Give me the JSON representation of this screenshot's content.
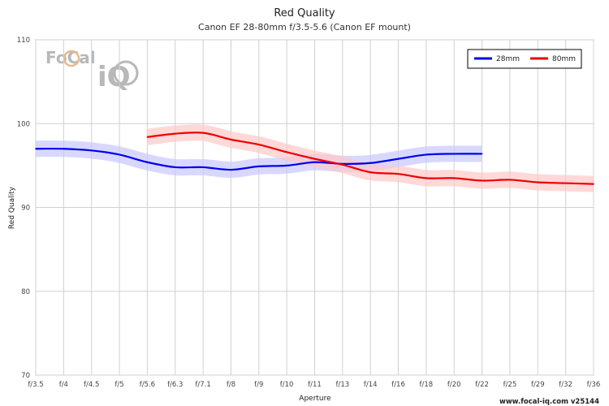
{
  "chart_data": {
    "type": "line",
    "title": "Red Quality",
    "subtitle": "Canon EF 28-80mm f/3.5-5.6 (Canon EF mount)",
    "xlabel": "Aperture",
    "ylabel": "Red Quality",
    "categories": [
      "f/3.5",
      "f/4",
      "f/4.5",
      "f/5",
      "f/5.6",
      "f/6.3",
      "f/7.1",
      "f/8",
      "f/9",
      "f/10",
      "f/11",
      "f/13",
      "f/14",
      "f/16",
      "f/18",
      "f/20",
      "f/22",
      "f/25",
      "f/29",
      "f/32",
      "f/36"
    ],
    "ylim": [
      70,
      110
    ],
    "yticks": [
      70,
      80,
      90,
      100,
      110
    ],
    "grid": true,
    "legend_position": "top-right",
    "series": [
      {
        "name": "28mm",
        "color": "#0000ee",
        "band_color": "#c8c8ff",
        "points": [
          [
            0,
            97.0
          ],
          [
            1,
            97.0
          ],
          [
            2,
            96.8
          ],
          [
            3,
            96.3
          ],
          [
            4,
            95.4
          ],
          [
            5,
            94.8
          ],
          [
            6,
            94.8
          ],
          [
            7,
            94.5
          ],
          [
            8,
            94.9
          ],
          [
            9,
            95.0
          ],
          [
            10,
            95.4
          ],
          [
            11,
            95.2
          ],
          [
            12,
            95.3
          ],
          [
            13,
            95.8
          ],
          [
            14,
            96.3
          ],
          [
            15,
            96.4
          ],
          [
            16,
            96.4
          ]
        ]
      },
      {
        "name": "80mm",
        "color": "#ee0000",
        "band_color": "#ffc8c8",
        "points": [
          [
            4,
            98.4
          ],
          [
            5,
            98.8
          ],
          [
            6,
            98.9
          ],
          [
            7,
            98.1
          ],
          [
            8,
            97.5
          ],
          [
            9,
            96.6
          ],
          [
            10,
            95.8
          ],
          [
            11,
            95.1
          ],
          [
            12,
            94.2
          ],
          [
            13,
            94.0
          ],
          [
            14,
            93.5
          ],
          [
            15,
            93.5
          ],
          [
            16,
            93.2
          ],
          [
            17,
            93.3
          ],
          [
            18,
            93.0
          ],
          [
            19,
            92.9
          ],
          [
            20,
            92.8
          ]
        ]
      }
    ]
  },
  "credit": "www.focal-iq.com  v25144",
  "logo": {
    "text_left": "FoCal",
    "text_right": "iQ"
  }
}
